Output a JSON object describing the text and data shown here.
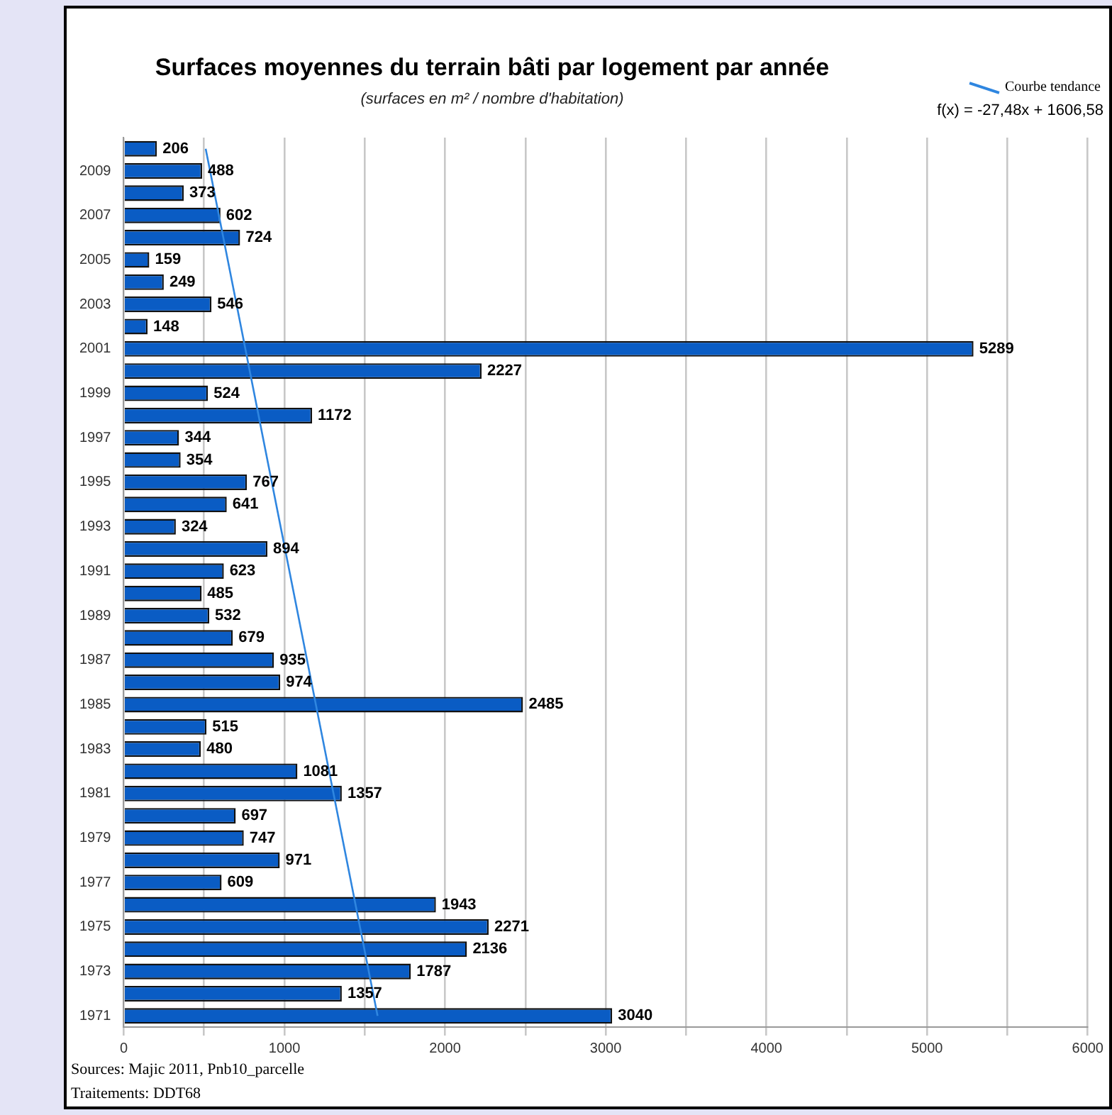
{
  "chart_data": {
    "type": "bar",
    "orientation": "horizontal",
    "title": "Surfaces moyennes du terrain bâti par logement par année",
    "subtitle": "(surfaces en m² / nombre d'habitation)",
    "categories": [
      null,
      "2009",
      null,
      "2007",
      null,
      "2005",
      null,
      "2003",
      null,
      "2001",
      null,
      "1999",
      null,
      "1997",
      null,
      "1995",
      null,
      "1993",
      null,
      "1991",
      null,
      "1989",
      null,
      "1987",
      null,
      "1985",
      null,
      "1983",
      null,
      "1981",
      null,
      "1979",
      null,
      "1977",
      null,
      "1975",
      null,
      "1973",
      null,
      "1971"
    ],
    "series": [
      {
        "color": "#0a5cc4",
        "values": [
          206,
          488,
          373,
          602,
          724,
          159,
          249,
          546,
          148,
          5289,
          2227,
          524,
          1172,
          344,
          354,
          767,
          641,
          324,
          894,
          623,
          485,
          532,
          679,
          935,
          974,
          2485,
          515,
          480,
          1081,
          1357,
          697,
          747,
          971,
          609,
          1943,
          2271,
          2136,
          1787,
          1357,
          3040
        ],
        "value_labels": [
          "206",
          "488",
          "373",
          "602",
          "724",
          "159",
          "249",
          "546",
          "148",
          "5289",
          "2227",
          "524",
          "1172",
          "344",
          "354",
          "767",
          "641",
          "324",
          "894",
          "623",
          "485",
          "532",
          "679",
          "935",
          "974",
          "2485",
          "515",
          "480",
          "1081",
          "1357",
          "697",
          "747",
          "971",
          "609",
          "1943",
          "2271",
          "2136",
          "1787",
          "1357",
          "3040"
        ]
      },
      {
        "type": "line",
        "name": "Courbe tendance",
        "color": "#2f86e0",
        "values": [
          510,
          null,
          null,
          null,
          null,
          null,
          null,
          null,
          null,
          null,
          null,
          null,
          null,
          null,
          null,
          null,
          null,
          null,
          null,
          null,
          null,
          null,
          null,
          null,
          null,
          null,
          null,
          null,
          null,
          null,
          null,
          null,
          null,
          null,
          null,
          null,
          null,
          null,
          null,
          1580
        ]
      }
    ],
    "xlim": [
      0,
      6000
    ],
    "xticks": [
      0,
      {
        "value": 500,
        "label": null
      },
      1000,
      {
        "value": 1500,
        "label": null
      },
      2000,
      {
        "value": 2500,
        "label": null
      },
      3000,
      {
        "value": 3500,
        "label": null
      },
      4000,
      {
        "value": 4500,
        "label": null
      },
      5000,
      {
        "value": 5500,
        "label": null
      },
      6000
    ],
    "grid": "x",
    "legend": "top right",
    "annotations": [
      "f(x) = -27,48x + 1606,58",
      "Sources: Majic 2011, Pnb10_parcelle",
      "Traitements: DDT68"
    ]
  }
}
